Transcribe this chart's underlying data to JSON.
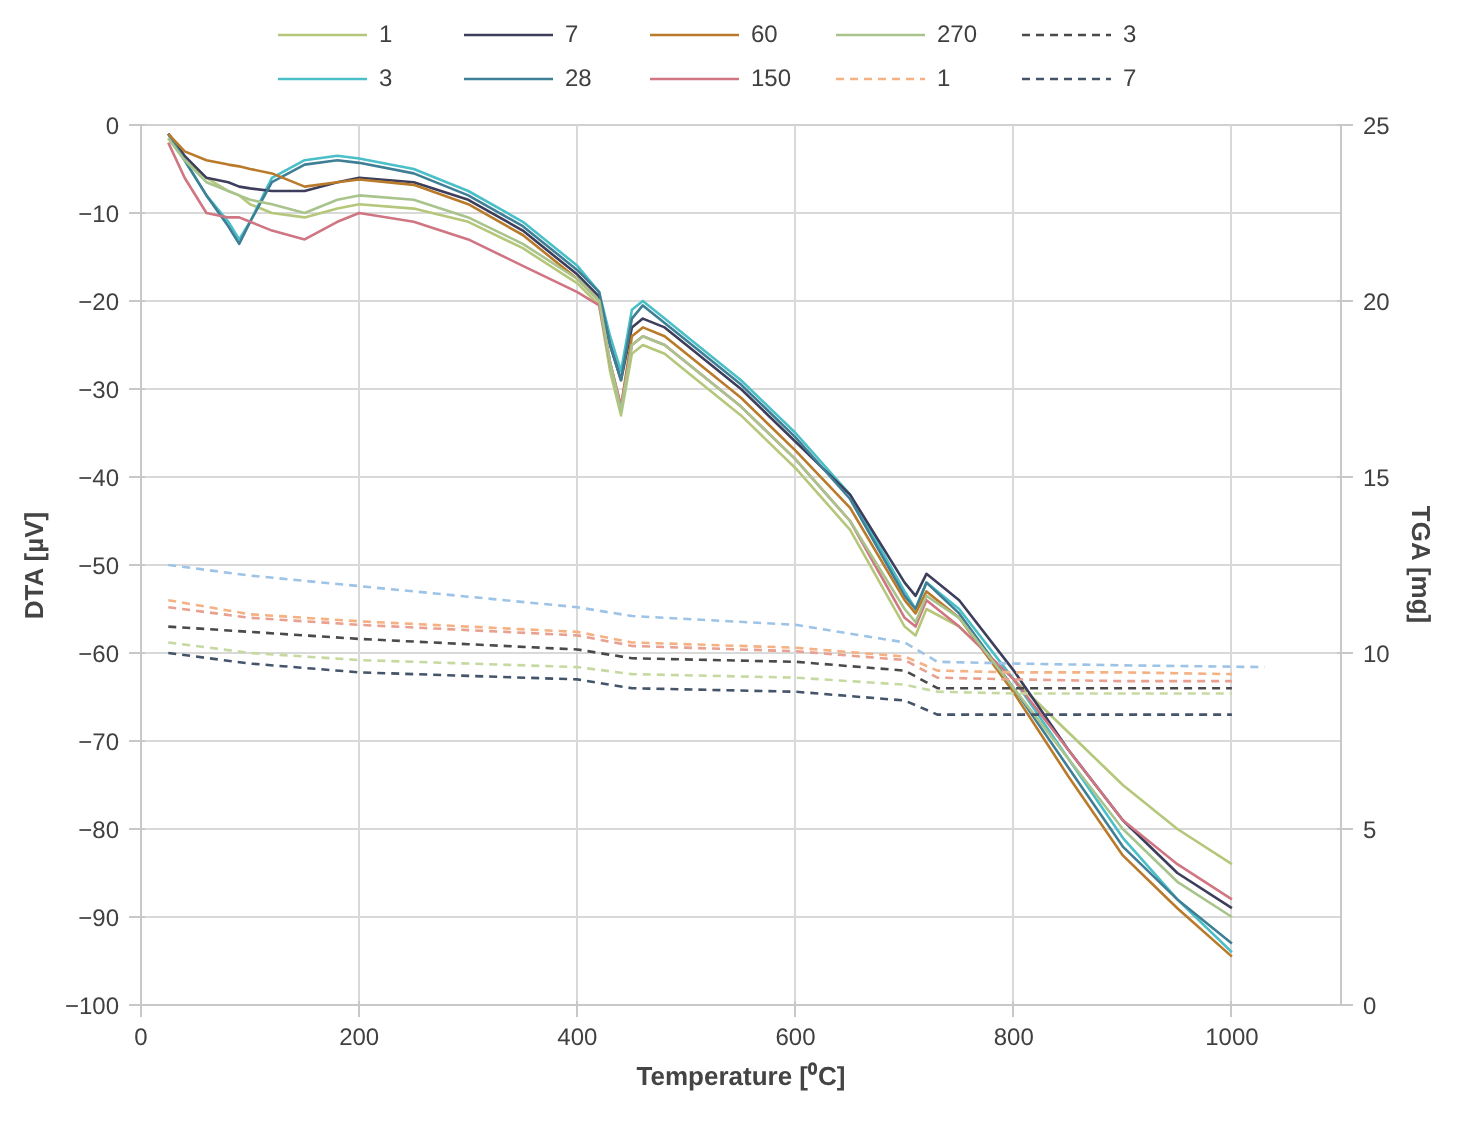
{
  "chart_data": {
    "type": "line",
    "xlabel": "Temperature [⁰C]",
    "ylabel": "DTA [µV]",
    "y2label": "TGA [mg]",
    "xlim": [
      0,
      1100
    ],
    "xticks": [
      0,
      200,
      400,
      600,
      800,
      1000
    ],
    "ylim": [
      -100,
      0
    ],
    "yticks": [
      -100,
      -90,
      -80,
      -70,
      -60,
      -50,
      -40,
      -30,
      -20,
      -10,
      0
    ],
    "y2lim": [
      0,
      25
    ],
    "y2ticks": [
      0,
      5,
      10,
      15,
      20,
      25
    ],
    "grid": true,
    "legend": "top",
    "marker": "none",
    "x": [
      25,
      40,
      60,
      80,
      90,
      100,
      120,
      150,
      180,
      200,
      250,
      300,
      350,
      400,
      420,
      430,
      440,
      450,
      460,
      480,
      500,
      550,
      600,
      650,
      700,
      710,
      720,
      750,
      800,
      850,
      900,
      950,
      1000
    ],
    "series": [
      {
        "name": "1",
        "color": "#b4c77a",
        "line_style": "solid",
        "values": [
          -1.5,
          -4,
          -6,
          -7.5,
          -8,
          -9,
          -10,
          -10.5,
          -9.5,
          -9,
          -9.5,
          -11,
          -14,
          -18,
          -20.5,
          -28,
          -33,
          -26,
          -25,
          -26,
          -28,
          -33,
          -39,
          -46,
          -57,
          -58,
          -55,
          -57,
          -63,
          -69,
          -75,
          -80,
          -84
        ]
      },
      {
        "name": "3",
        "color": "#4bbfc8",
        "line_style": "solid",
        "values": [
          -1,
          -4,
          -8,
          -11,
          -13,
          -11,
          -6,
          -4,
          -3.5,
          -3.8,
          -5,
          -7.5,
          -11,
          -16,
          -19,
          -24,
          -28,
          -21,
          -20,
          -22,
          -24,
          -29,
          -35,
          -42,
          -53,
          -55,
          -52,
          -55,
          -63,
          -72,
          -81,
          -88,
          -94
        ]
      },
      {
        "name": "7",
        "color": "#3d3d5c",
        "line_style": "solid",
        "values": [
          -1,
          -3.5,
          -6,
          -6.5,
          -7,
          -7.2,
          -7.5,
          -7.5,
          -6.5,
          -6,
          -6.5,
          -8.5,
          -12,
          -17,
          -19.5,
          -25,
          -29,
          -23,
          -22,
          -23,
          -25,
          -30,
          -36,
          -42,
          -52,
          -53.5,
          -51,
          -54,
          -62,
          -71,
          -79,
          -85,
          -89
        ]
      },
      {
        "name": "28",
        "color": "#3f7f96",
        "line_style": "solid",
        "values": [
          -1,
          -4,
          -8,
          -11.5,
          -13.5,
          -11,
          -6.5,
          -4.5,
          -4,
          -4.3,
          -5.5,
          -8,
          -11.5,
          -16.5,
          -19,
          -25,
          -29,
          -22,
          -20.5,
          -22.5,
          -24.5,
          -29.5,
          -35.5,
          -42.5,
          -53.5,
          -55,
          -52,
          -55.5,
          -64,
          -73,
          -82,
          -88,
          -93
        ]
      },
      {
        "name": "60",
        "color": "#b97a2a",
        "line_style": "solid",
        "values": [
          -1,
          -3,
          -4,
          -4.5,
          -4.7,
          -5,
          -5.5,
          -7,
          -6.5,
          -6.2,
          -6.8,
          -9,
          -12.5,
          -17.5,
          -20,
          -27,
          -32,
          -24,
          -23,
          -24,
          -26,
          -31,
          -37,
          -43.5,
          -54,
          -55.5,
          -53,
          -56,
          -64.5,
          -74,
          -83,
          -89,
          -94.5
        ]
      },
      {
        "name": "150",
        "color": "#d07582",
        "line_style": "solid",
        "values": [
          -2,
          -6,
          -10,
          -10.5,
          -10.5,
          -11,
          -12,
          -13,
          -11,
          -10,
          -11,
          -13,
          -16,
          -19,
          -20.5,
          -27,
          -32,
          -25,
          -24,
          -25,
          -27,
          -32,
          -38,
          -45,
          -56,
          -57,
          -54,
          -57,
          -63,
          -71,
          -79,
          -84,
          -88
        ]
      },
      {
        "name": "270",
        "color": "#a8c48c",
        "line_style": "solid",
        "values": [
          -1.5,
          -4,
          -6.5,
          -7.5,
          -8,
          -8.5,
          -9,
          -10,
          -8.5,
          -8,
          -8.5,
          -10.5,
          -13.5,
          -17.5,
          -20,
          -27,
          -32.5,
          -25,
          -24,
          -25,
          -27,
          -32,
          -38,
          -45,
          -55,
          -56.5,
          -53.5,
          -56,
          -64,
          -72,
          -80,
          -86,
          -90
        ]
      },
      {
        "name": "1",
        "color": "#f4b183",
        "line_style": "dashed",
        "axis": "y2",
        "x": [
          25,
          100,
          200,
          300,
          400,
          450,
          600,
          700,
          730,
          800,
          900,
          1000
        ],
        "values": [
          11.5,
          11.1,
          10.9,
          10.75,
          10.6,
          10.3,
          10.15,
          9.9,
          9.5,
          9.45,
          9.45,
          9.4
        ]
      },
      {
        "name": "3",
        "color": "#4a4a4a",
        "line_style": "dashed",
        "axis": "y2",
        "x": [
          25,
          100,
          200,
          300,
          400,
          450,
          600,
          700,
          730,
          800,
          900,
          1000
        ],
        "values": [
          10.75,
          10.6,
          10.4,
          10.25,
          10.1,
          9.85,
          9.75,
          9.5,
          9.0,
          9.0,
          9.0,
          9.0
        ]
      },
      {
        "name": "7",
        "color": "#44546a",
        "line_style": "dashed",
        "axis": "y2",
        "x": [
          25,
          100,
          200,
          300,
          400,
          450,
          600,
          700,
          730,
          800,
          900,
          1000
        ],
        "values": [
          10.0,
          9.7,
          9.45,
          9.35,
          9.25,
          9.0,
          8.9,
          8.65,
          8.25,
          8.25,
          8.25,
          8.25
        ]
      },
      {
        "color": "#9dc3e6",
        "line_style": "dashed",
        "axis": "y2",
        "x": [
          25,
          100,
          200,
          300,
          400,
          450,
          600,
          700,
          730,
          800,
          900,
          1030
        ],
        "values": [
          12.5,
          12.2,
          11.9,
          11.6,
          11.3,
          11.05,
          10.8,
          10.3,
          9.75,
          9.7,
          9.65,
          9.6
        ]
      },
      {
        "color": "#e8a090",
        "line_style": "dashed",
        "axis": "y2",
        "x": [
          25,
          100,
          200,
          300,
          400,
          450,
          600,
          700,
          730,
          800,
          900,
          1000
        ],
        "values": [
          11.3,
          11.0,
          10.8,
          10.65,
          10.5,
          10.2,
          10.05,
          9.8,
          9.3,
          9.25,
          9.2,
          9.2
        ]
      },
      {
        "color": "#c5d9a0",
        "line_style": "dashed",
        "axis": "y2",
        "x": [
          25,
          100,
          200,
          300,
          400,
          450,
          600,
          700,
          730,
          800,
          900,
          1000
        ],
        "values": [
          10.3,
          10.0,
          9.8,
          9.7,
          9.6,
          9.4,
          9.3,
          9.1,
          8.9,
          8.85,
          8.85,
          8.85
        ]
      }
    ]
  }
}
